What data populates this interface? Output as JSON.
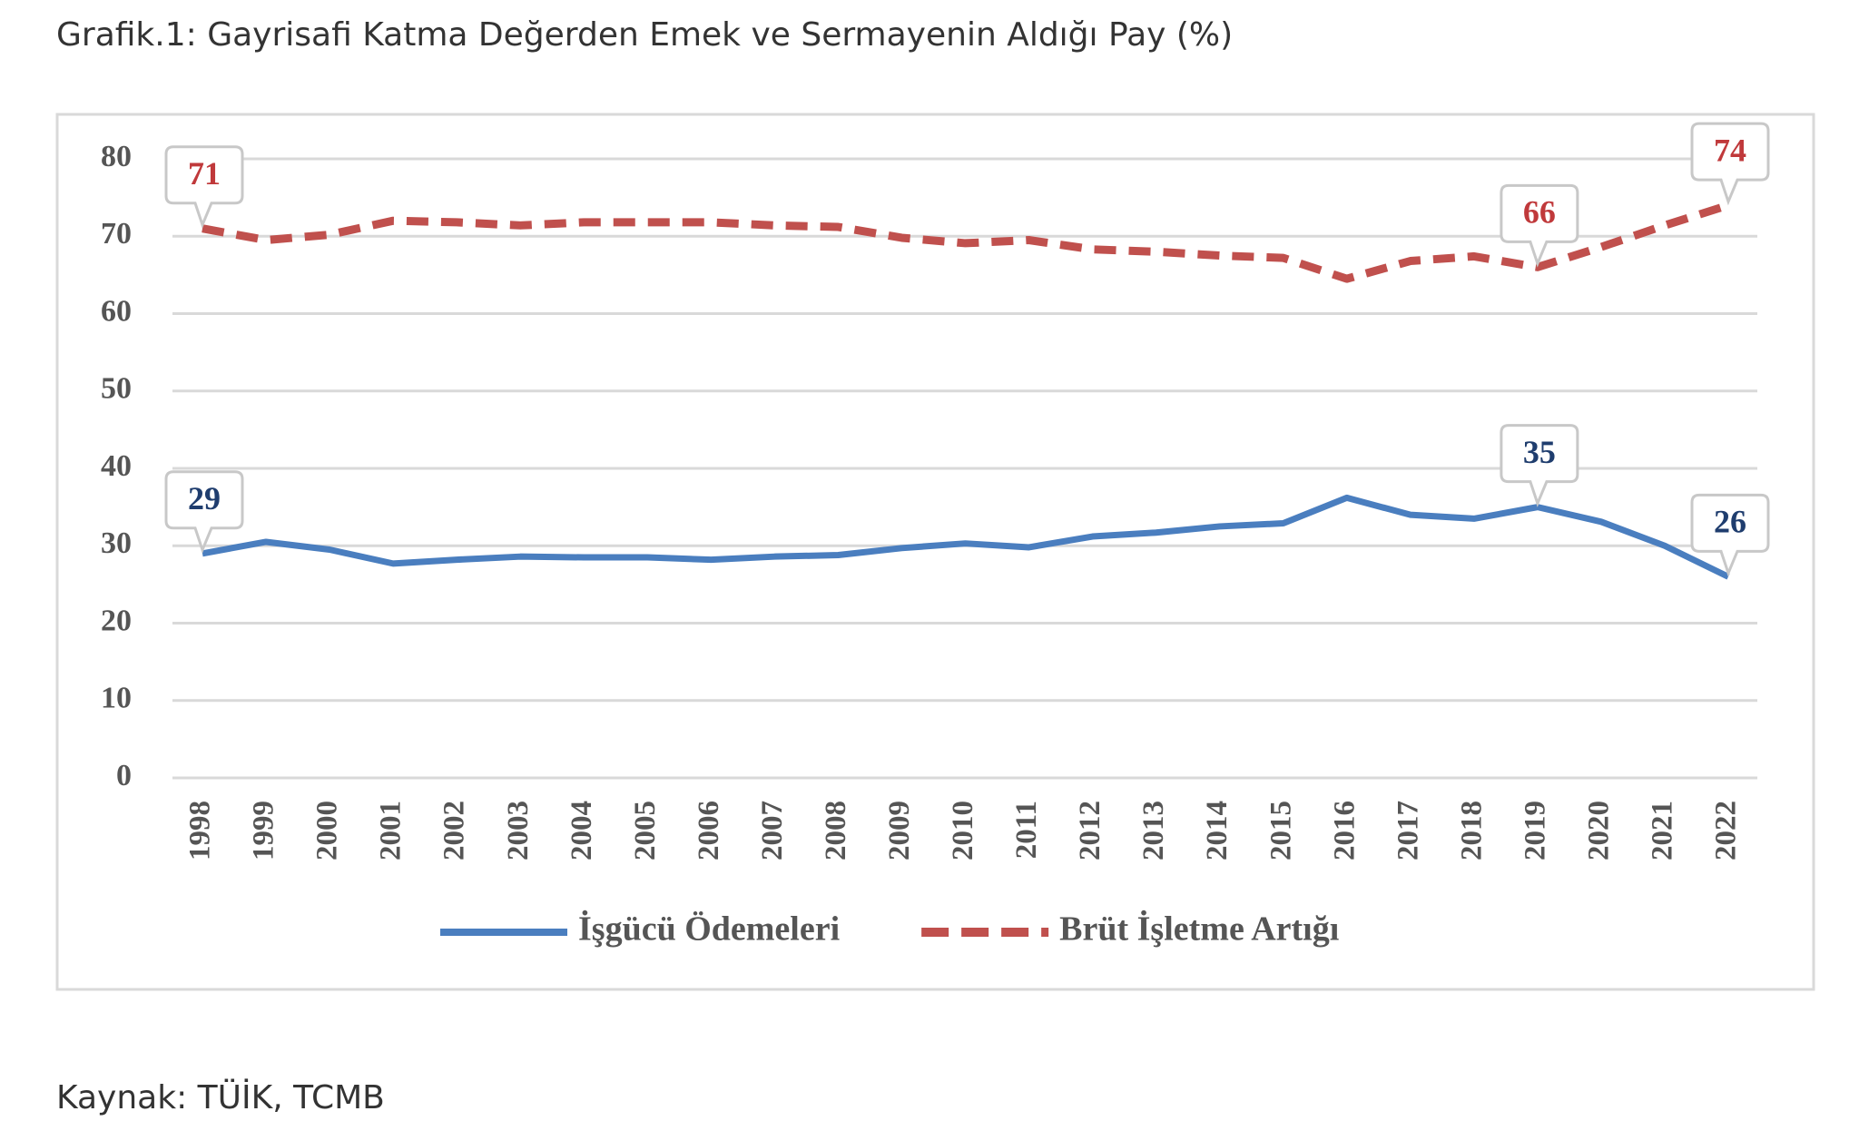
{
  "chart_data": {
    "type": "line",
    "title": "Grafik.1: Gayrisafi Katma Değerden Emek ve Sermayenin Aldığı Pay (%)",
    "source": "Kaynak: TÜİK, TCMB",
    "categories": [
      "1998",
      "1999",
      "2000",
      "2001",
      "2002",
      "2003",
      "2004",
      "2005",
      "2006",
      "2007",
      "2008",
      "2009",
      "2010",
      "2011",
      "2012",
      "2013",
      "2014",
      "2015",
      "2016",
      "2017",
      "2018",
      "2019",
      "2020",
      "2021",
      "2022"
    ],
    "series": [
      {
        "name": "İşgücü Ödemeleri",
        "color": "#4a7ebf",
        "dash": false,
        "values": [
          29,
          30.5,
          29.5,
          27.7,
          28.2,
          28.6,
          28.5,
          28.5,
          28.2,
          28.6,
          28.8,
          29.7,
          30.3,
          29.8,
          31.2,
          31.7,
          32.5,
          32.9,
          36.2,
          34,
          33.5,
          35,
          33.1,
          30,
          26
        ],
        "value_labels": [
          "29",
          null,
          null,
          null,
          null,
          null,
          null,
          null,
          null,
          null,
          null,
          null,
          null,
          null,
          null,
          null,
          null,
          null,
          null,
          null,
          null,
          "35",
          null,
          null,
          "26"
        ],
        "label_color": "#1f3d6e"
      },
      {
        "name": "Brüt İşletme Artığı",
        "color": "#c0504d",
        "dash": true,
        "values": [
          71,
          69.5,
          70.2,
          72,
          71.8,
          71.4,
          71.8,
          71.8,
          71.8,
          71.4,
          71.2,
          69.8,
          69.1,
          69.5,
          68.3,
          68,
          67.5,
          67.2,
          64.5,
          66.8,
          67.4,
          66,
          68.6,
          71.4,
          74
        ],
        "value_labels": [
          "71",
          null,
          null,
          null,
          null,
          null,
          null,
          null,
          null,
          null,
          null,
          null,
          null,
          null,
          null,
          null,
          null,
          null,
          null,
          null,
          null,
          "66",
          null,
          null,
          "74"
        ],
        "label_color": "#c0393b"
      }
    ],
    "ylim": [
      0,
      80
    ],
    "yticks": [
      0,
      10,
      20,
      30,
      40,
      50,
      60,
      70,
      80
    ],
    "grid": true,
    "legend": "bottom"
  }
}
